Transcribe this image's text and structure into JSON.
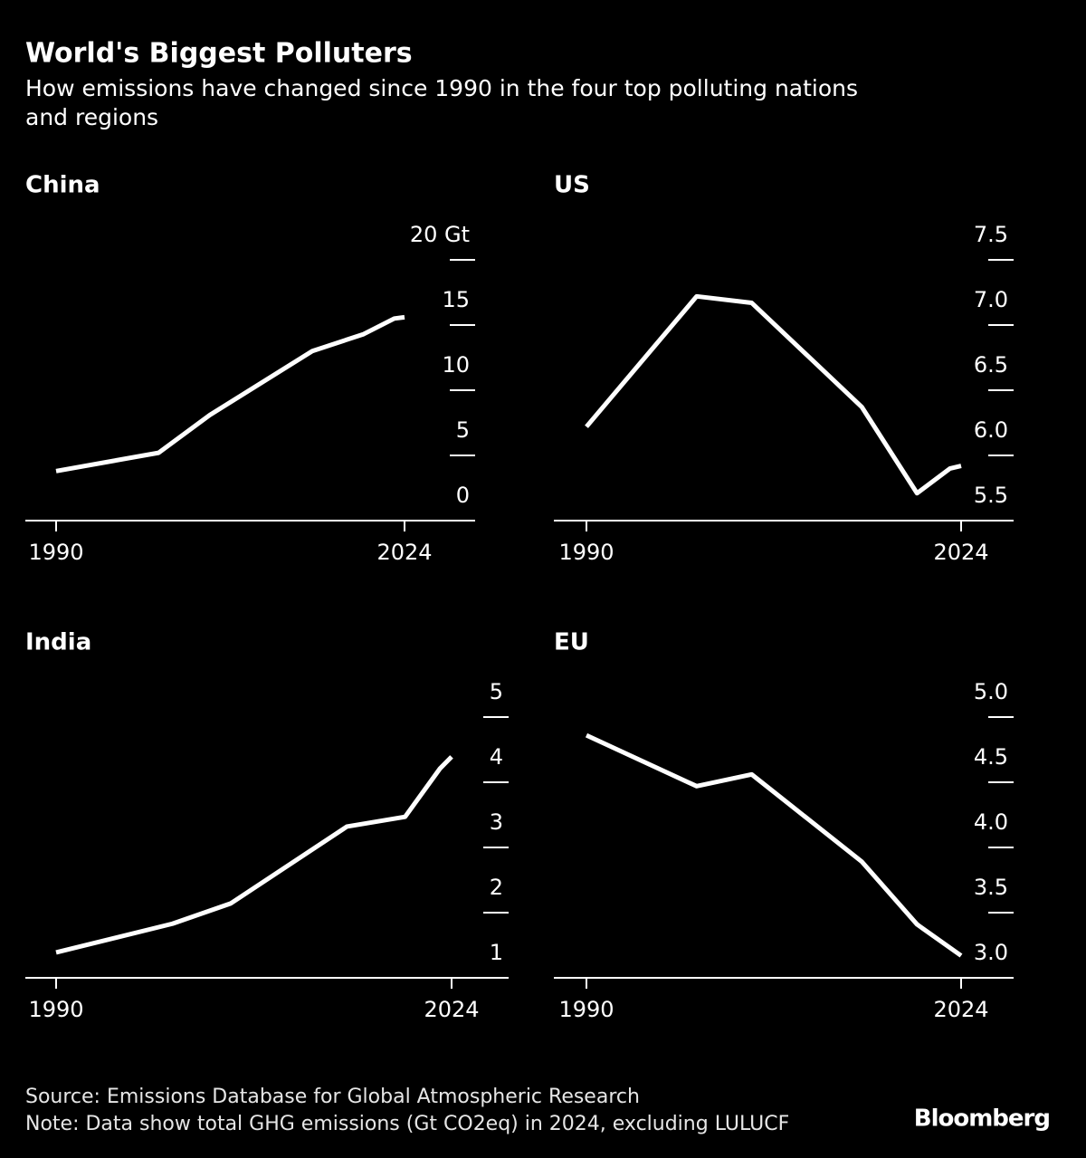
{
  "title": "World's Biggest Polluters",
  "subtitle": [
    "How emissions have changed since 1990 in the four top polluting nations",
    "and regions"
  ],
  "source": "Source: Emissions Database for Global Atmospheric Research",
  "note": "Note: Data show total GHG emissions (Gt CO2eq) in 2024, excluding LULUCF",
  "brand": "Bloomberg",
  "chart_data": [
    {
      "type": "line",
      "title": "China",
      "color": "#ffffff",
      "x": [
        1990,
        2000,
        2005,
        2015,
        2020,
        2023,
        2024
      ],
      "values": [
        3.8,
        5.2,
        8.1,
        13.0,
        14.3,
        15.5,
        15.6
      ],
      "xlim": [
        1990,
        2024
      ],
      "xticks": [
        1990,
        2024
      ],
      "ylim": [
        0,
        20
      ],
      "yticks": [
        0,
        5,
        10,
        15,
        {
          "value": 20,
          "label": "20 Gt"
        }
      ]
    },
    {
      "type": "line",
      "title": "US",
      "color": "#ffffff",
      "x": [
        1990,
        2000,
        2005,
        2015,
        2020,
        2023,
        2024
      ],
      "values": [
        6.22,
        7.22,
        7.17,
        6.37,
        5.71,
        5.9,
        5.92
      ],
      "xlim": [
        1990,
        2024
      ],
      "xticks": [
        1990,
        2024
      ],
      "ylim": [
        5.5,
        7.5
      ],
      "yticks": [
        5.5,
        {
          "value": 6,
          "label": "6.0"
        },
        6.5,
        {
          "value": 7,
          "label": "7.0"
        },
        7.5
      ]
    },
    {
      "type": "line",
      "title": "India",
      "color": "#ffffff",
      "x": [
        1990,
        2000,
        2005,
        2015,
        2020,
        2023,
        2024
      ],
      "values": [
        1.39,
        1.83,
        2.14,
        3.32,
        3.47,
        4.21,
        4.39
      ],
      "xlim": [
        1990,
        2024
      ],
      "xticks": [
        1990,
        2024
      ],
      "ylim": [
        1,
        5
      ],
      "yticks": [
        1,
        2,
        3,
        4,
        5
      ]
    },
    {
      "type": "line",
      "title": "EU",
      "color": "#ffffff",
      "x": [
        1990,
        2000,
        2005,
        2015,
        2020,
        2024
      ],
      "values": [
        4.86,
        4.47,
        4.56,
        3.89,
        3.41,
        3.17
      ],
      "xlim": [
        1990,
        2024
      ],
      "xticks": [
        1990,
        2024
      ],
      "ylim": [
        3,
        5
      ],
      "yticks": [
        {
          "value": 3,
          "label": "3.0"
        },
        3.5,
        {
          "value": 4,
          "label": "4.0"
        },
        4.5,
        {
          "value": 5,
          "label": "5.0"
        }
      ]
    }
  ]
}
